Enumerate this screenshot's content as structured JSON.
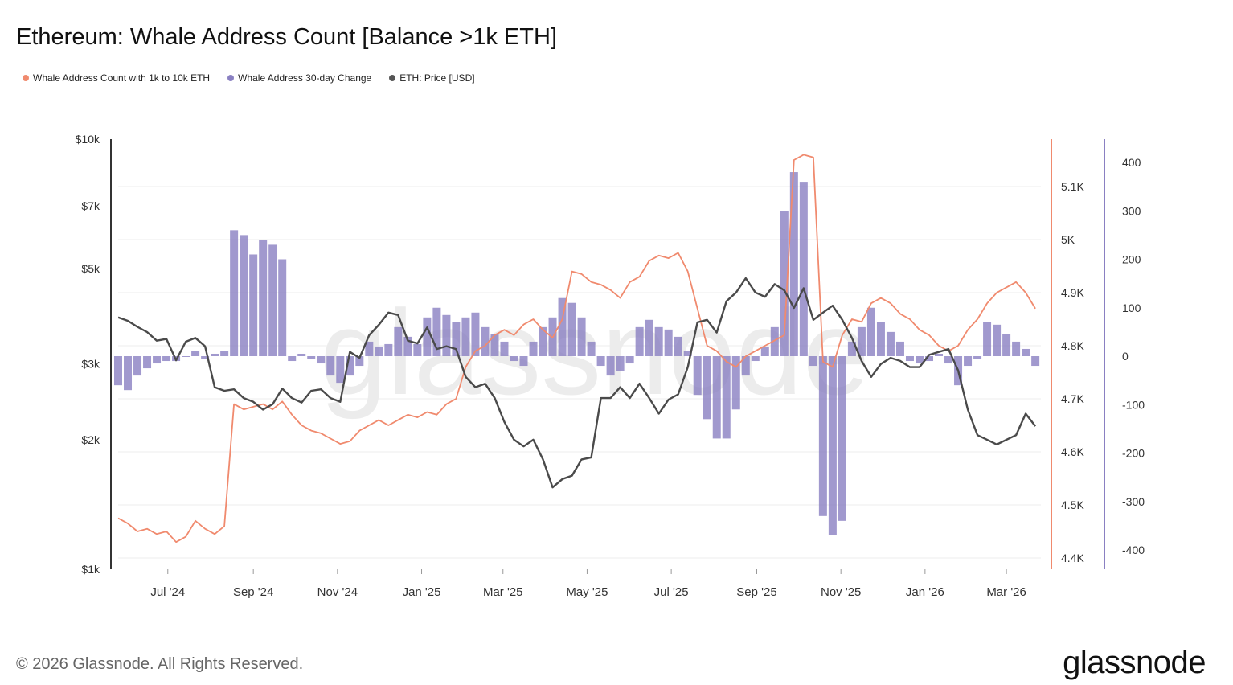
{
  "title": "Ethereum: Whale Address Count [Balance >1k ETH]",
  "footer": "© 2026 Glassnode. All Rights Reserved.",
  "logo": "glassnode",
  "watermark": "glassnode",
  "chart_data": {
    "type": "line+bar",
    "title": "Ethereum: Whale Address Count [Balance >1k ETH]",
    "legend_position": "top-left",
    "grid": true,
    "x_ticks": [
      "Jul '24",
      "Sep '24",
      "Nov '24",
      "Jan '25",
      "Mar '25",
      "May '25",
      "Jul '25",
      "Sep '25",
      "Nov '25",
      "Jan '26",
      "Mar '26"
    ],
    "x_tick_dates": [
      "2024-07-01",
      "2024-09-01",
      "2024-11-01",
      "2025-01-01",
      "2025-03-01",
      "2025-05-01",
      "2025-07-01",
      "2025-09-01",
      "2025-11-01",
      "2026-01-01",
      "2026-03-01"
    ],
    "xlim": [
      "2024-05-26",
      "2026-03-26"
    ],
    "price_axis": {
      "scale": "log",
      "ylim": [
        1000,
        10000
      ],
      "ticks": [
        10000,
        7000,
        5000,
        3000,
        2000,
        1000
      ],
      "tick_labels": [
        "$10k",
        "$7k",
        "$5k",
        "$3k",
        "$2k",
        "$1k"
      ]
    },
    "count_axis": {
      "ylim": [
        4380,
        5190
      ],
      "ticks": [
        5100,
        5000,
        4900,
        4800,
        4700,
        4600,
        4500,
        4400
      ],
      "tick_labels": [
        "5.1K",
        "5K",
        "4.9K",
        "4.8K",
        "4.7K",
        "4.6K",
        "4.5K",
        "4.4K"
      ],
      "color": "#f08a6e"
    },
    "change_axis": {
      "ylim": [
        -440,
        440
      ],
      "ticks": [
        400,
        300,
        200,
        100,
        0,
        -100,
        -200,
        -300,
        -400
      ],
      "tick_labels": [
        "400",
        "300",
        "200",
        "100",
        "0",
        "-100",
        "-200",
        "-300",
        "-400"
      ],
      "color": "#8a80c2"
    },
    "dates": [
      "2024-05-26",
      "2024-06-02",
      "2024-06-09",
      "2024-06-16",
      "2024-06-23",
      "2024-06-30",
      "2024-07-07",
      "2024-07-14",
      "2024-07-21",
      "2024-07-28",
      "2024-08-04",
      "2024-08-11",
      "2024-08-18",
      "2024-08-25",
      "2024-09-01",
      "2024-09-08",
      "2024-09-15",
      "2024-09-22",
      "2024-09-29",
      "2024-10-06",
      "2024-10-13",
      "2024-10-20",
      "2024-10-27",
      "2024-11-03",
      "2024-11-10",
      "2024-11-17",
      "2024-11-24",
      "2024-12-01",
      "2024-12-08",
      "2024-12-15",
      "2024-12-22",
      "2024-12-29",
      "2025-01-05",
      "2025-01-12",
      "2025-01-19",
      "2025-01-26",
      "2025-02-02",
      "2025-02-09",
      "2025-02-16",
      "2025-02-23",
      "2025-03-02",
      "2025-03-09",
      "2025-03-16",
      "2025-03-23",
      "2025-03-30",
      "2025-04-06",
      "2025-04-13",
      "2025-04-20",
      "2025-04-27",
      "2025-05-04",
      "2025-05-11",
      "2025-05-18",
      "2025-05-25",
      "2025-06-01",
      "2025-06-08",
      "2025-06-15",
      "2025-06-22",
      "2025-06-29",
      "2025-07-06",
      "2025-07-13",
      "2025-07-20",
      "2025-07-27",
      "2025-08-03",
      "2025-08-10",
      "2025-08-17",
      "2025-08-24",
      "2025-08-31",
      "2025-09-07",
      "2025-09-14",
      "2025-09-21",
      "2025-09-28",
      "2025-10-05",
      "2025-10-12",
      "2025-10-19",
      "2025-10-26",
      "2025-11-02",
      "2025-11-09",
      "2025-11-16",
      "2025-11-23",
      "2025-11-30",
      "2025-12-07",
      "2025-12-14",
      "2025-12-21",
      "2025-12-28",
      "2026-01-04",
      "2026-01-11",
      "2026-01-18",
      "2026-01-25",
      "2026-02-01",
      "2026-02-08",
      "2026-02-15",
      "2026-02-22",
      "2026-03-01",
      "2026-03-08",
      "2026-03-15",
      "2026-03-22"
    ],
    "series": [
      {
        "name": "Whale Address Count with 1k to 10k ETH",
        "kind": "line",
        "axis": "count",
        "color": "#f08a6e",
        "values": [
          4475,
          4465,
          4450,
          4455,
          4445,
          4450,
          4430,
          4440,
          4470,
          4455,
          4445,
          4460,
          4690,
          4680,
          4685,
          4690,
          4680,
          4695,
          4670,
          4650,
          4640,
          4635,
          4625,
          4615,
          4620,
          4640,
          4650,
          4660,
          4650,
          4660,
          4670,
          4665,
          4675,
          4670,
          4690,
          4700,
          4760,
          4790,
          4800,
          4820,
          4830,
          4820,
          4840,
          4850,
          4830,
          4815,
          4850,
          4940,
          4935,
          4920,
          4915,
          4905,
          4890,
          4920,
          4930,
          4960,
          4970,
          4965,
          4975,
          4940,
          4870,
          4800,
          4790,
          4770,
          4760,
          4780,
          4790,
          4800,
          4810,
          4820,
          5150,
          5160,
          5155,
          4770,
          4760,
          4820,
          4850,
          4845,
          4880,
          4890,
          4880,
          4860,
          4850,
          4830,
          4820,
          4800,
          4790,
          4800,
          4830,
          4850,
          4880,
          4900,
          4910,
          4920,
          4900,
          4870
        ]
      },
      {
        "name": "Whale Address 30-day Change",
        "kind": "bar",
        "axis": "change",
        "color": "#8a80c2",
        "values": [
          -60,
          -70,
          -40,
          -25,
          -15,
          -10,
          -10,
          0,
          10,
          -5,
          5,
          10,
          260,
          250,
          210,
          240,
          230,
          200,
          -10,
          5,
          -5,
          -15,
          -40,
          -55,
          -40,
          -20,
          30,
          20,
          25,
          60,
          40,
          25,
          80,
          100,
          85,
          70,
          80,
          90,
          60,
          45,
          30,
          -10,
          -20,
          30,
          60,
          80,
          120,
          110,
          80,
          30,
          -20,
          -40,
          -30,
          -15,
          60,
          75,
          60,
          55,
          40,
          10,
          -80,
          -130,
          -170,
          -170,
          -110,
          -40,
          -10,
          20,
          60,
          300,
          380,
          360,
          -20,
          -330,
          -370,
          -340,
          30,
          60,
          100,
          70,
          50,
          30,
          -10,
          -15,
          -10,
          5,
          -15,
          -60,
          -20,
          -5,
          70,
          65,
          45,
          30,
          15,
          -20
        ]
      },
      {
        "name": "ETH: Price [USD]",
        "kind": "line",
        "axis": "price",
        "color": "#4a4a4a",
        "values": [
          3850,
          3780,
          3660,
          3560,
          3400,
          3430,
          3060,
          3380,
          3450,
          3300,
          2650,
          2600,
          2620,
          2500,
          2450,
          2350,
          2420,
          2630,
          2500,
          2440,
          2600,
          2620,
          2500,
          2450,
          3200,
          3100,
          3500,
          3700,
          3950,
          3900,
          3400,
          3350,
          3650,
          3250,
          3300,
          3250,
          2800,
          2650,
          2700,
          2500,
          2200,
          2000,
          1930,
          2000,
          1800,
          1550,
          1620,
          1650,
          1800,
          1820,
          2500,
          2500,
          2650,
          2500,
          2700,
          2500,
          2300,
          2480,
          2550,
          2950,
          3750,
          3800,
          3550,
          4200,
          4400,
          4750,
          4400,
          4300,
          4600,
          4450,
          4050,
          4500,
          3800,
          3950,
          4100,
          3800,
          3450,
          3050,
          2800,
          3000,
          3100,
          3050,
          2950,
          2950,
          3150,
          3200,
          3250,
          2900,
          2350,
          2050,
          2000,
          1950,
          2000,
          2050,
          2300,
          2150
        ]
      }
    ]
  }
}
